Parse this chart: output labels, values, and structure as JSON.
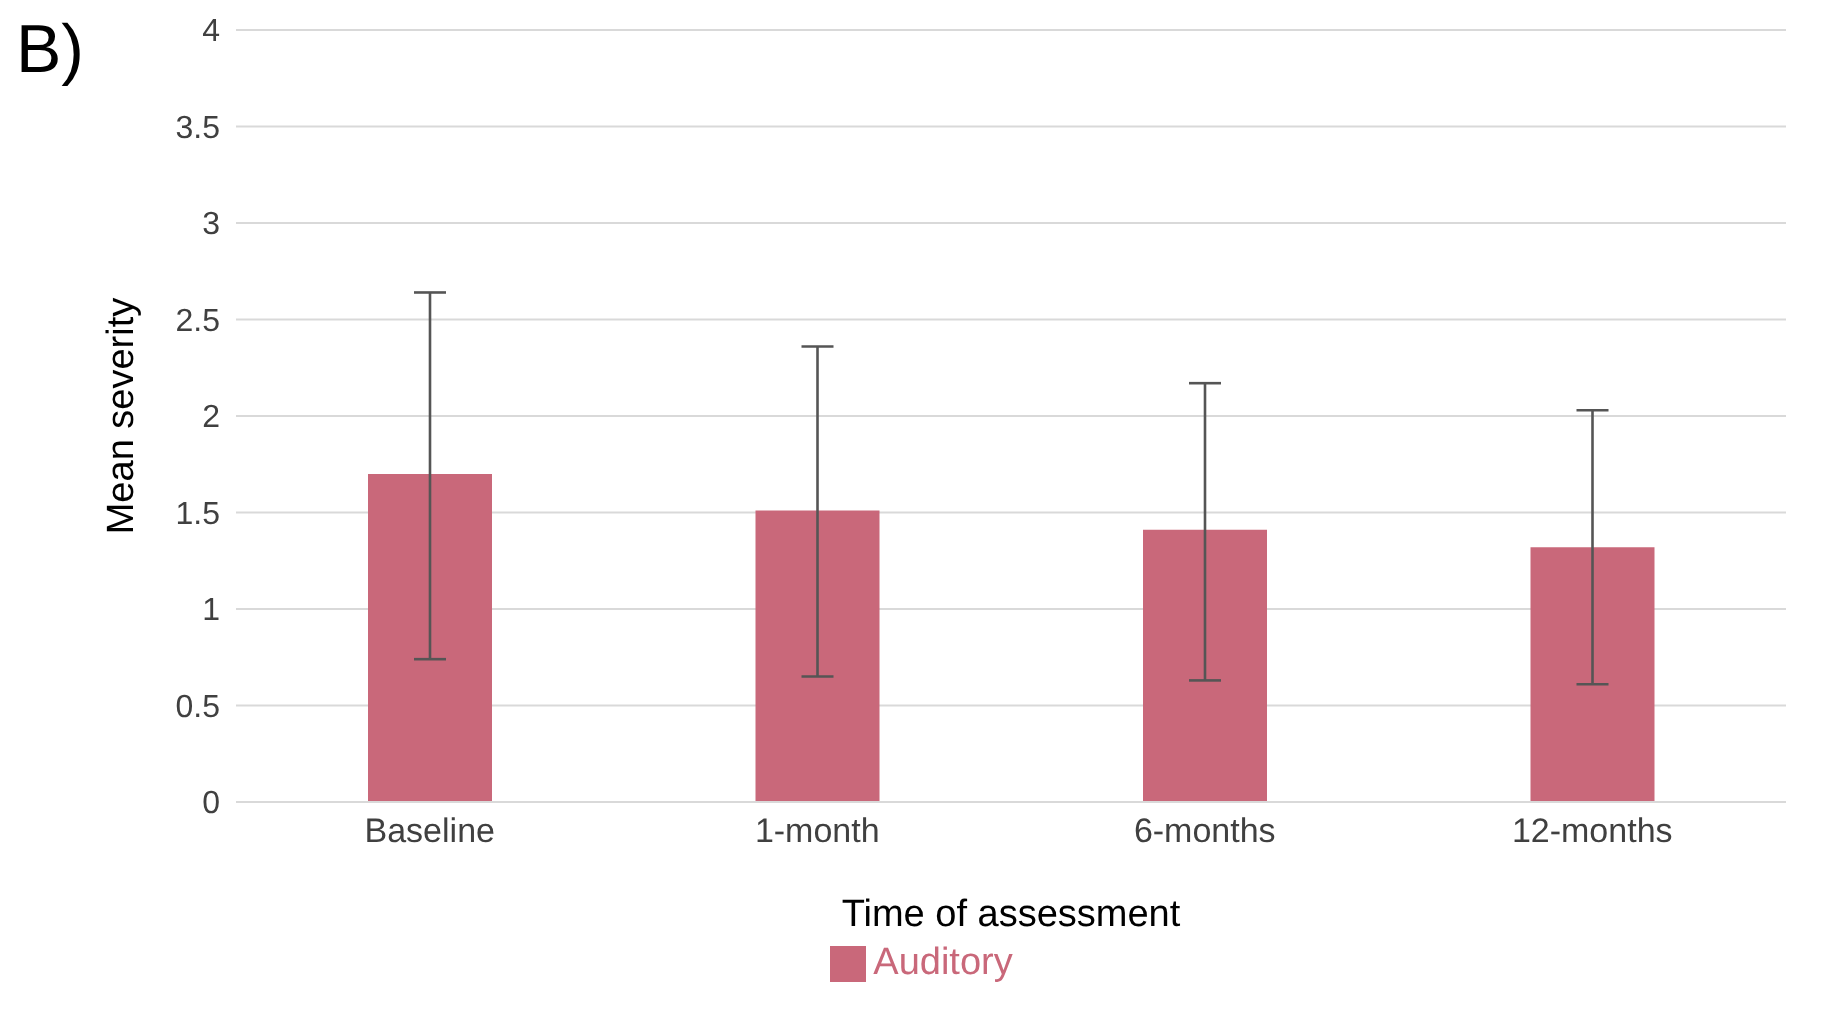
{
  "chart_data": {
    "type": "bar",
    "xlabel": "Time of assessment",
    "ylabel": "Mean severity",
    "annotations": [
      "B)"
    ],
    "categories": [
      "Baseline",
      "1-month",
      "6-months",
      "12-months"
    ],
    "series": [
      {
        "name": "Auditory",
        "color": "#c9687a",
        "values": [
          1.7,
          1.51,
          1.41,
          1.32
        ],
        "errors": [
          [
            0.74,
            2.64
          ],
          [
            0.65,
            2.36
          ],
          [
            0.63,
            2.17
          ],
          [
            0.61,
            2.03
          ]
        ]
      }
    ],
    "ylim": [
      0,
      4
    ],
    "yticks": [
      0,
      0.5,
      1,
      1.5,
      2,
      2.5,
      3,
      3.5,
      4
    ],
    "grid": "y",
    "legend": "bottom"
  }
}
